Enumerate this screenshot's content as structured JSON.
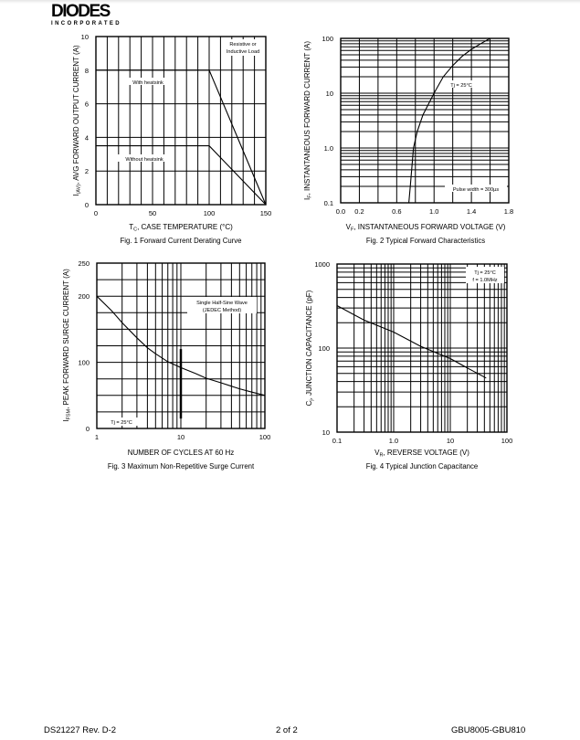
{
  "header": {
    "logo_text": "DIODES",
    "logo_subtext": "INCORPORATED"
  },
  "footer": {
    "doc_id": "DS21227 Rev. D-2",
    "page": "2 of 2",
    "part": "GBU8005-GBU810"
  },
  "chart_data": [
    {
      "type": "line",
      "title": "Fig. 1  Forward Current Derating Curve",
      "xlabel": {
        "symbol": "T",
        "sub": "C",
        "text": ", CASE TEMPERATURE (°C)"
      },
      "ylabel": {
        "symbol": "I",
        "sub": "(AV)",
        "text": ", AVG FORWARD OUTPUT CURRENT (A)"
      },
      "xscale": "linear",
      "yscale": "linear",
      "xlim": [
        0,
        150
      ],
      "ylim": [
        0,
        10
      ],
      "xticks": [
        "0",
        "50",
        "100",
        "150"
      ],
      "yticks": [
        "0",
        "2",
        "4",
        "6",
        "8",
        "10"
      ],
      "grid": true,
      "annotations": [
        [
          "Resistive or",
          "Inductive Load"
        ],
        [
          "With heatsink"
        ],
        [
          "Without heatsink"
        ]
      ],
      "series": [
        {
          "name": "With heatsink",
          "points": [
            [
              0,
              8
            ],
            [
              100,
              8
            ],
            [
              150,
              0
            ]
          ]
        },
        {
          "name": "Without heatsink",
          "points": [
            [
              0,
              3.5
            ],
            [
              100,
              3.5
            ],
            [
              150,
              0
            ]
          ]
        }
      ]
    },
    {
      "type": "line",
      "title": "Fig. 2  Typical Forward Characteristics",
      "xlabel": {
        "symbol": "V",
        "sub": "F",
        "text": ", INSTANTANEOUS FORWARD VOLTAGE (V)"
      },
      "ylabel": {
        "symbol": "I",
        "sub": "F",
        "text": ", INSTANTANEOUS FORWARD CURRENT (A)"
      },
      "xscale": "linear",
      "yscale": "log",
      "xlim": [
        0,
        1.8
      ],
      "ylim": [
        0.1,
        100
      ],
      "xticks": [
        "0.0",
        "0.2",
        "0.6",
        "1.0",
        "1.4",
        "1.8"
      ],
      "yticks": [
        "0.1",
        "1.0",
        "10",
        "100"
      ],
      "grid": true,
      "annotations": [
        [
          "Tj = 25°C"
        ],
        [
          "Pulse width = 300µs"
        ]
      ],
      "series": [
        {
          "points": [
            [
              0.73,
              0.1
            ],
            [
              0.745,
              0.2
            ],
            [
              0.76,
              0.4
            ],
            [
              0.78,
              1
            ],
            [
              0.82,
              2
            ],
            [
              0.88,
              4
            ],
            [
              1.0,
              10
            ],
            [
              1.1,
              20
            ],
            [
              1.2,
              32
            ],
            [
              1.3,
              47
            ],
            [
              1.4,
              63
            ],
            [
              1.5,
              80
            ],
            [
              1.6,
              100
            ]
          ]
        }
      ]
    },
    {
      "type": "line",
      "title": "Fig. 3  Maximum Non-Repetitive Surge Current",
      "xlabel": {
        "symbol": "",
        "sub": "",
        "text": "NUMBER OF CYCLES AT 60 Hz"
      },
      "ylabel": {
        "symbol": "I",
        "sub": "FSM",
        "text": ", PEAK FORWARD SURGE CURRENT (A)"
      },
      "xscale": "log",
      "yscale": "linear",
      "xlim": [
        1,
        100
      ],
      "ylim": [
        0,
        250
      ],
      "xticks": [
        "1",
        "10",
        "100"
      ],
      "yticks": [
        "0",
        "100",
        "200",
        "250"
      ],
      "grid": true,
      "annotations": [
        [
          "Single Half-Sine Wave",
          "(JEDEC Method)"
        ],
        [
          "Tj = 25°C"
        ]
      ],
      "series": [
        {
          "points": [
            [
              1,
              200
            ],
            [
              1.5,
              178
            ],
            [
              2,
              160
            ],
            [
              3,
              137
            ],
            [
              4,
              122
            ],
            [
              5,
              113
            ],
            [
              7,
              101
            ],
            [
              10,
              92
            ],
            [
              15,
              83
            ],
            [
              20,
              76
            ],
            [
              30,
              69
            ],
            [
              50,
              60
            ],
            [
              70,
              55
            ],
            [
              100,
              50
            ]
          ]
        }
      ]
    },
    {
      "type": "line",
      "title": "Fig. 4  Typical Junction Capacitance",
      "xlabel": {
        "symbol": "V",
        "sub": "R",
        "text": ", REVERSE VOLTAGE (V)"
      },
      "ylabel": {
        "symbol": "C",
        "sub": "j",
        "text": ", JUNCTION CAPACITANCE (pF)"
      },
      "xscale": "log",
      "yscale": "log",
      "xlim": [
        0.1,
        100
      ],
      "ylim": [
        10,
        1000
      ],
      "xticks": [
        "0.1",
        "1.0",
        "10",
        "100"
      ],
      "yticks": [
        "10",
        "100",
        "1000"
      ],
      "grid": true,
      "annotations": [
        [
          "Tj = 25°C",
          "f = 1.0MHz"
        ]
      ],
      "series": [
        {
          "points": [
            [
              0.1,
              320
            ],
            [
              0.3,
              215
            ],
            [
              1,
              155
            ],
            [
              3,
              105
            ],
            [
              10,
              75
            ],
            [
              20,
              58
            ],
            [
              43,
              44
            ]
          ]
        }
      ]
    }
  ]
}
